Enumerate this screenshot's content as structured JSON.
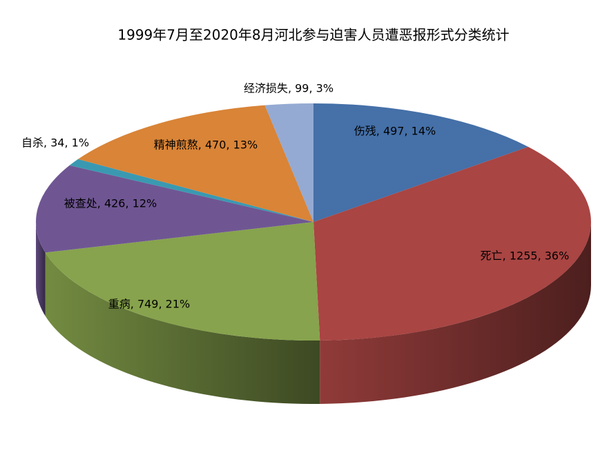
{
  "chart_data": {
    "type": "pie3d",
    "title": "1999年7月至2020年8月河北参与迫害人员遭恶报形式分类统计",
    "values": [
      497,
      1255,
      749,
      426,
      34,
      470,
      99
    ],
    "value_labels": [
      "伤残, 497, 14%",
      "死亡, 1255, 36%",
      "重病, 749, 21%",
      "被查处, 426, 12%",
      "自杀, 34, 1%",
      "精神煎熬, 470, 13%",
      "经济损失, 99, 3%"
    ],
    "colors": [
      "#4570a8",
      "#a94543",
      "#87a34d",
      "#6f5693",
      "#3a99b1",
      "#d98437",
      "#95aad2"
    ]
  }
}
